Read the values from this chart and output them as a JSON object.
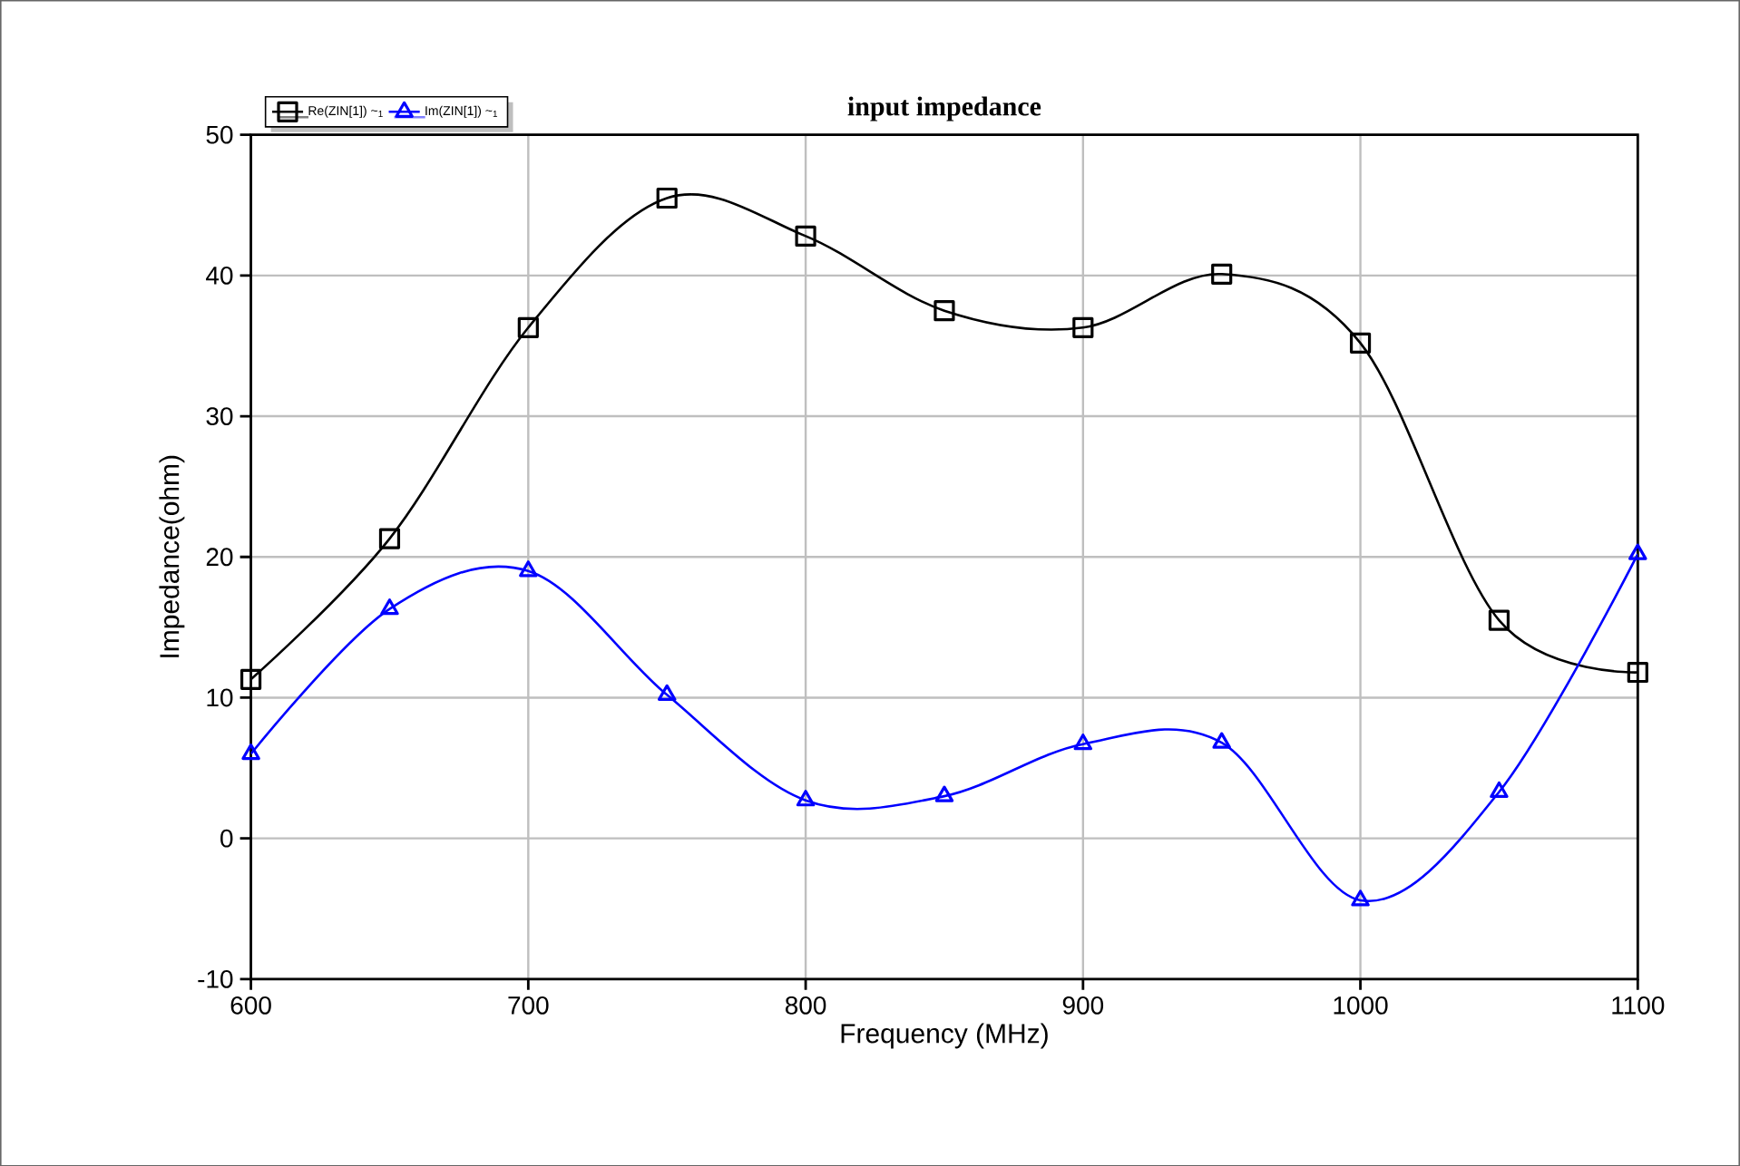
{
  "chart_data": {
    "type": "line",
    "title": "input impedance",
    "xlabel": "Frequency (MHz)",
    "ylabel": "Impedance(ohm)",
    "x": [
      600,
      650,
      700,
      750,
      800,
      850,
      900,
      950,
      1000,
      1050,
      1100
    ],
    "series": [
      {
        "name": "Re(ZIN[1]) ~$_{1}$",
        "color": "#000000",
        "marker": "square",
        "values": [
          11.3,
          21.3,
          36.3,
          45.5,
          42.8,
          37.5,
          36.3,
          40.1,
          35.2,
          15.5,
          11.8
        ]
      },
      {
        "name": "Im(ZIN[1]) ~$_{1}$",
        "color": "#0000ff",
        "marker": "triangle",
        "values": [
          6,
          16.3,
          19,
          10.2,
          2.7,
          3,
          6.7,
          6.8,
          -4.4,
          3.3,
          20.2
        ]
      }
    ],
    "xlim": [
      600,
      1100
    ],
    "ylim": [
      -10,
      50
    ],
    "xticks": [
      600,
      700,
      800,
      900,
      1000,
      1100
    ],
    "yticks": [
      -10,
      0,
      10,
      20,
      30,
      40,
      50
    ],
    "grid": true,
    "legend": "top left",
    "line_style": "solid"
  }
}
